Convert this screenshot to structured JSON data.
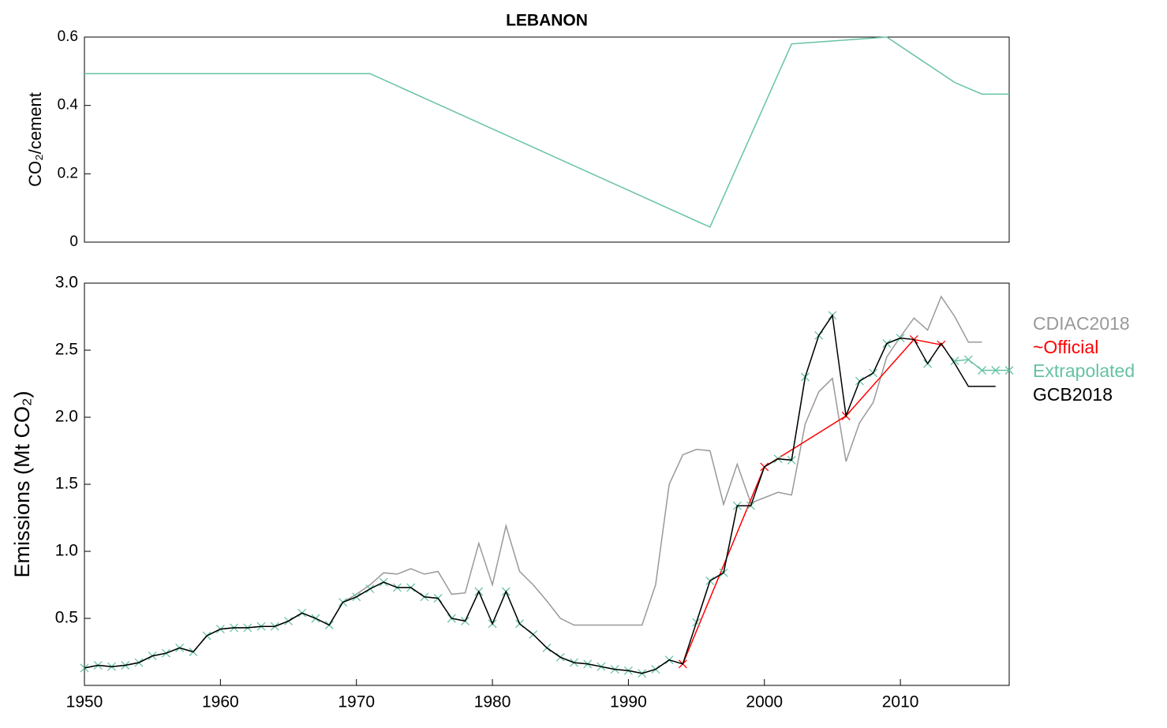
{
  "chart_data": [
    {
      "type": "line",
      "title": "LEBANON",
      "ylabel": "CO₂/cement",
      "xlim": [
        1950,
        2018
      ],
      "ylim": [
        0,
        0.6
      ],
      "yticks": [
        0,
        0.2,
        0.4,
        0.6
      ],
      "series": [
        {
          "name": "Extrapolated",
          "color": "#66c2a5",
          "x": [
            1950,
            1971,
            1996,
            2002,
            2009,
            2014,
            2016,
            2018
          ],
          "values": [
            0.493,
            0.493,
            0.044,
            0.58,
            0.6,
            0.467,
            0.433,
            0.433
          ]
        }
      ]
    },
    {
      "type": "line",
      "ylabel": "Emissions (Mt CO₂)",
      "xlim": [
        1950,
        2018
      ],
      "xticks": [
        1950,
        1960,
        1970,
        1980,
        1990,
        2000,
        2010
      ],
      "ylim": [
        0,
        3
      ],
      "yticks": [
        0.5,
        {
          "value": 1,
          "label": "1.0"
        },
        1.5,
        {
          "value": 2,
          "label": "2.0"
        },
        2.5,
        {
          "value": 3,
          "label": "3.0"
        }
      ],
      "legend": "outside-right",
      "x": [
        1950,
        1951,
        1952,
        1953,
        1954,
        1955,
        1956,
        1957,
        1958,
        1959,
        1960,
        1961,
        1962,
        1963,
        1964,
        1965,
        1966,
        1967,
        1968,
        1969,
        1970,
        1971,
        1972,
        1973,
        1974,
        1975,
        1976,
        1977,
        1978,
        1979,
        1980,
        1981,
        1982,
        1983,
        1984,
        1985,
        1986,
        1987,
        1988,
        1989,
        1990,
        1991,
        1992,
        1993,
        1994,
        1995,
        1996,
        1997,
        1998,
        1999,
        2000,
        2001,
        2002,
        2003,
        2004,
        2005,
        2006,
        2007,
        2008,
        2009,
        2010,
        2011,
        2012,
        2013,
        2014,
        2015,
        2016,
        2017,
        2018
      ],
      "series": [
        {
          "name": "CDIAC2018",
          "color": "#999999",
          "values": [
            0.13,
            0.15,
            0.14,
            0.15,
            0.17,
            0.22,
            0.24,
            0.28,
            0.25,
            0.37,
            0.42,
            0.43,
            0.43,
            0.44,
            0.44,
            0.48,
            0.54,
            0.5,
            0.45,
            0.62,
            0.68,
            0.75,
            0.84,
            0.83,
            0.87,
            0.83,
            0.85,
            0.68,
            0.69,
            1.06,
            0.75,
            1.19,
            0.85,
            0.75,
            0.63,
            0.5,
            0.45,
            0.45,
            0.45,
            0.45,
            0.45,
            0.45,
            0.75,
            1.5,
            1.72,
            1.76,
            1.75,
            1.35,
            1.65,
            1.36,
            1.4,
            1.44,
            1.42,
            1.95,
            2.19,
            2.29,
            1.67,
            1.96,
            2.11,
            2.45,
            2.6,
            2.74,
            2.65,
            2.9,
            2.75,
            2.56,
            2.56,
            null,
            null
          ]
        },
        {
          "name": "~Official",
          "color": "#ff0000",
          "marker": "x",
          "x": [
            1994,
            2000,
            2006,
            2011,
            2013
          ],
          "values": [
            0.16,
            1.63,
            2.01,
            2.58,
            2.54
          ]
        },
        {
          "name": "Extrapolated",
          "color": "#66c2a5",
          "marker": "x",
          "values": [
            0.13,
            0.15,
            0.14,
            0.15,
            0.17,
            0.22,
            0.24,
            0.28,
            0.25,
            0.37,
            0.42,
            0.43,
            0.43,
            0.44,
            0.44,
            0.48,
            0.54,
            0.5,
            0.45,
            0.62,
            0.66,
            0.72,
            0.77,
            0.73,
            0.73,
            0.66,
            0.65,
            0.5,
            0.48,
            0.7,
            0.46,
            0.7,
            0.46,
            0.38,
            0.28,
            0.21,
            0.17,
            0.16,
            0.14,
            0.12,
            0.11,
            0.09,
            0.12,
            0.19,
            null,
            0.47,
            0.78,
            0.84,
            1.34,
            1.34,
            null,
            1.69,
            1.68,
            2.3,
            2.61,
            2.76,
            null,
            2.27,
            2.33,
            2.55,
            2.59,
            null,
            2.4,
            null,
            2.42,
            2.43,
            2.35,
            2.35,
            2.35
          ]
        },
        {
          "name": "GCB2018",
          "color": "#000000",
          "values": [
            0.13,
            0.15,
            0.14,
            0.15,
            0.17,
            0.22,
            0.24,
            0.28,
            0.25,
            0.37,
            0.42,
            0.43,
            0.43,
            0.44,
            0.44,
            0.48,
            0.54,
            0.5,
            0.45,
            0.62,
            0.66,
            0.72,
            0.77,
            0.73,
            0.73,
            0.66,
            0.65,
            0.5,
            0.48,
            0.7,
            0.46,
            0.7,
            0.46,
            0.38,
            0.28,
            0.21,
            0.17,
            0.16,
            0.14,
            0.12,
            0.11,
            0.09,
            0.12,
            0.19,
            0.16,
            0.47,
            0.78,
            0.84,
            1.34,
            1.34,
            1.63,
            1.69,
            1.68,
            2.3,
            2.61,
            2.76,
            2.01,
            2.27,
            2.33,
            2.55,
            2.59,
            2.58,
            2.4,
            2.55,
            2.4,
            2.23,
            2.23,
            2.23,
            null
          ]
        }
      ]
    }
  ]
}
